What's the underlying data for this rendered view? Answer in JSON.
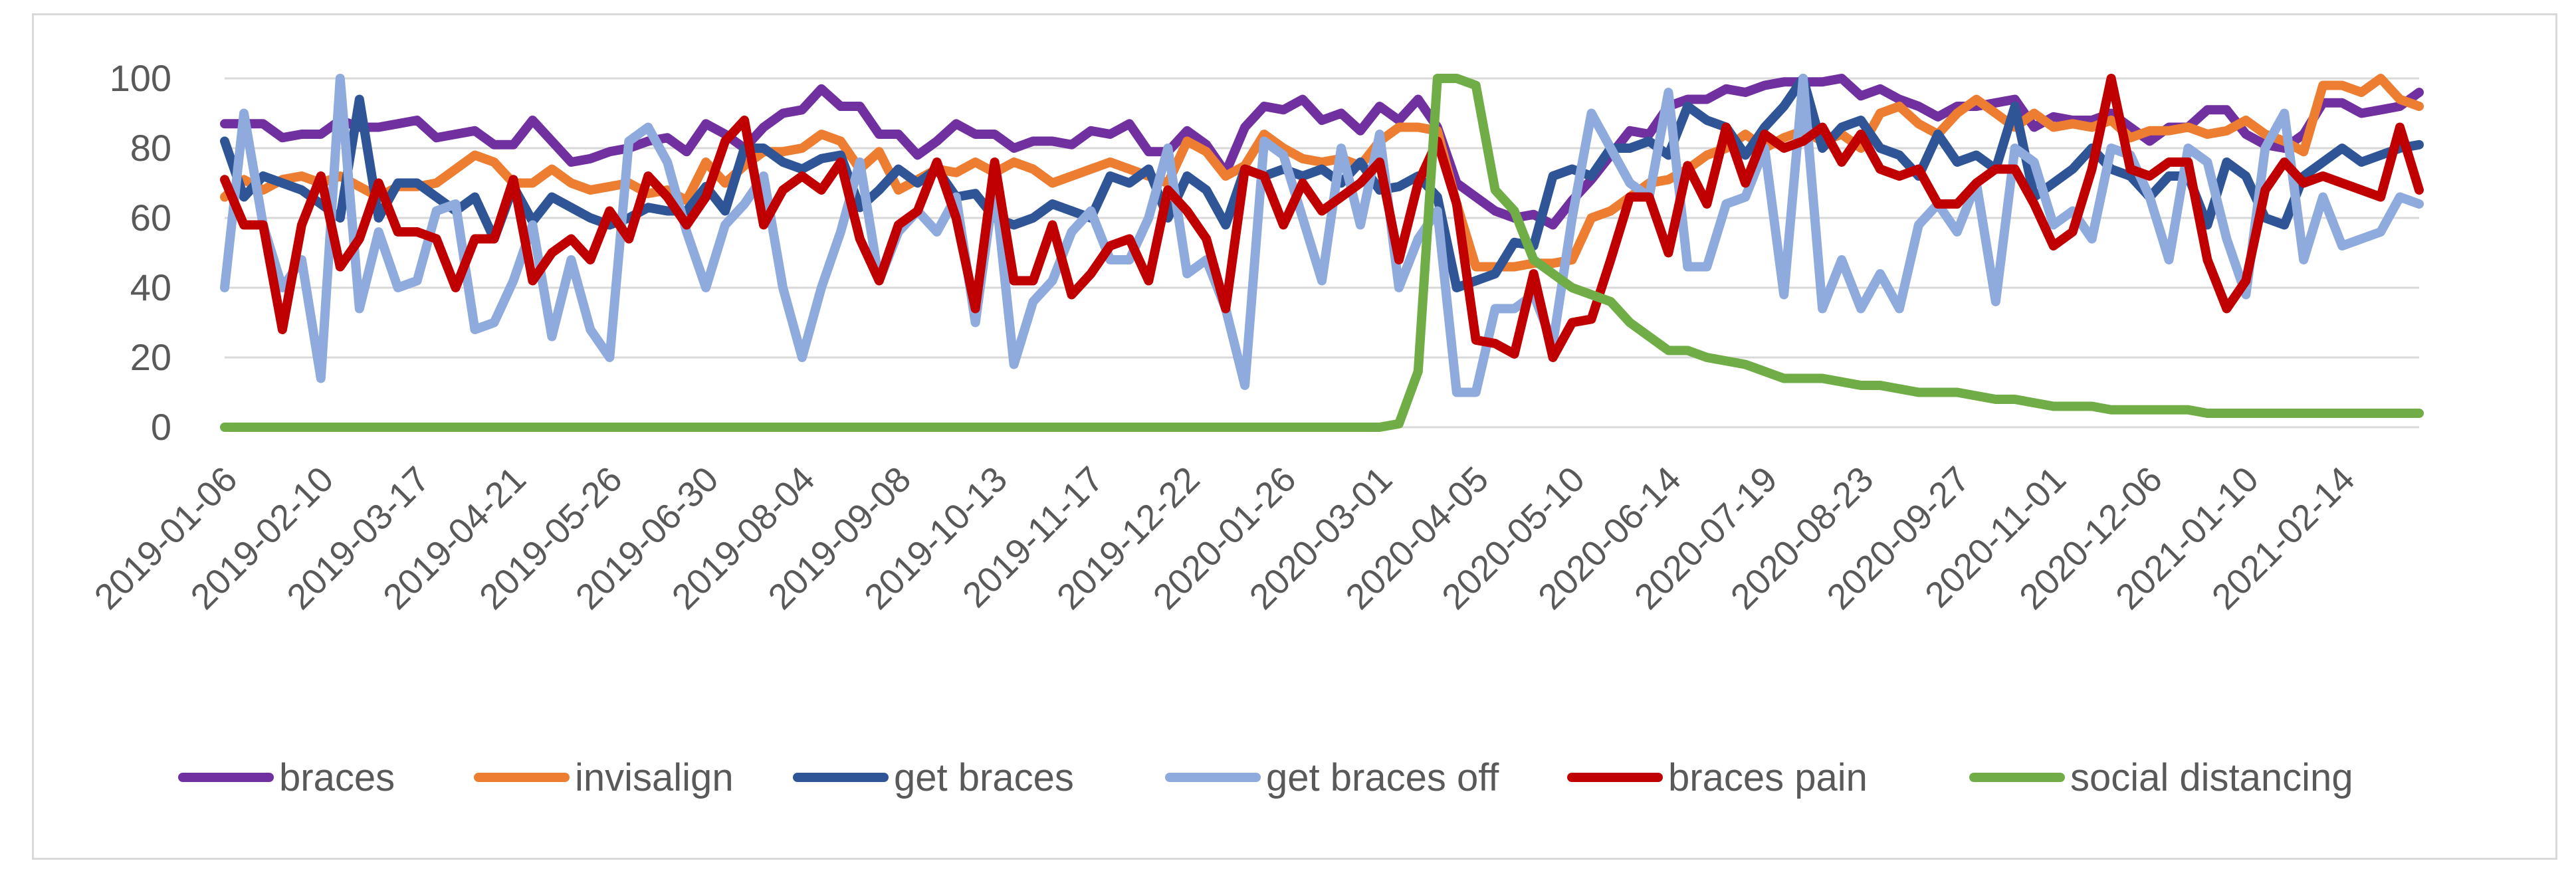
{
  "chart_data": {
    "type": "line",
    "title": "",
    "xlabel": "",
    "ylabel": "",
    "ylim": [
      0,
      100
    ],
    "yticks": [
      0,
      20,
      40,
      60,
      80,
      100
    ],
    "grid": true,
    "legend_position": "bottom",
    "x_tick_labels": [
      "2019-01-06",
      "2019-02-10",
      "2019-03-17",
      "2019-04-21",
      "2019-05-26",
      "2019-06-30",
      "2019-08-04",
      "2019-09-08",
      "2019-10-13",
      "2019-11-17",
      "2019-12-22",
      "2020-01-26",
      "2020-03-01",
      "2020-04-05",
      "2020-05-10",
      "2020-06-14",
      "2020-07-19",
      "2020-08-23",
      "2020-09-27",
      "2020-11-01",
      "2020-12-06",
      "2021-01-10",
      "2021-02-14"
    ],
    "series": [
      {
        "name": "braces",
        "color": "#7030a0",
        "values": [
          87,
          87,
          87,
          83,
          84,
          84,
          88,
          86,
          86,
          87,
          88,
          83,
          84,
          85,
          81,
          81,
          88,
          82,
          76,
          77,
          79,
          80,
          82,
          83,
          79,
          87,
          84,
          80,
          86,
          90,
          91,
          97,
          92,
          92,
          84,
          84,
          78,
          82,
          87,
          84,
          84,
          80,
          82,
          82,
          81,
          85,
          84,
          87,
          79,
          79,
          85,
          81,
          73,
          86,
          92,
          91,
          94,
          88,
          90,
          85,
          92,
          88,
          94,
          86,
          70,
          66,
          62,
          60,
          61,
          58,
          65,
          71,
          78,
          85,
          84,
          92,
          94,
          94,
          97,
          96,
          98,
          99,
          99,
          99,
          100,
          95,
          97,
          94,
          92,
          89,
          92,
          92,
          93,
          94,
          86,
          89,
          88,
          88,
          90,
          86,
          82,
          86,
          86,
          91,
          91,
          84,
          81,
          80,
          84,
          93,
          93,
          90,
          91,
          92,
          96
        ]
      },
      {
        "name": "invisalign",
        "color": "#ed7d31",
        "values": [
          66,
          71,
          68,
          71,
          72,
          70,
          72,
          69,
          66,
          69,
          69,
          70,
          74,
          78,
          76,
          70,
          70,
          74,
          70,
          68,
          69,
          70,
          67,
          68,
          65,
          76,
          70,
          75,
          79,
          79,
          80,
          84,
          82,
          74,
          79,
          68,
          71,
          74,
          73,
          76,
          73,
          76,
          74,
          70,
          72,
          74,
          76,
          74,
          72,
          70,
          82,
          79,
          72,
          75,
          84,
          80,
          77,
          76,
          77,
          75,
          82,
          86,
          86,
          85,
          64,
          46,
          46,
          46,
          47,
          47,
          48,
          60,
          62,
          66,
          70,
          71,
          74,
          78,
          80,
          84,
          80,
          83,
          85,
          82,
          84,
          80,
          90,
          92,
          87,
          84,
          90,
          94,
          90,
          86,
          90,
          86,
          87,
          86,
          88,
          83,
          85,
          85,
          86,
          84,
          85,
          88,
          84,
          82,
          79,
          98,
          98,
          96,
          100,
          94,
          92
        ]
      },
      {
        "name": "get braces",
        "color": "#2f5597",
        "values": [
          82,
          66,
          72,
          70,
          68,
          64,
          60,
          94,
          60,
          70,
          70,
          66,
          62,
          66,
          54,
          69,
          59,
          66,
          63,
          60,
          58,
          60,
          63,
          62,
          62,
          69,
          62,
          80,
          80,
          76,
          74,
          77,
          78,
          63,
          68,
          74,
          70,
          74,
          66,
          67,
          60,
          58,
          60,
          64,
          62,
          60,
          72,
          70,
          74,
          60,
          72,
          68,
          58,
          74,
          72,
          74,
          72,
          74,
          70,
          76,
          68,
          69,
          72,
          66,
          40,
          42,
          44,
          53,
          52,
          72,
          74,
          72,
          80,
          80,
          82,
          78,
          92,
          88,
          86,
          78,
          86,
          92,
          100,
          80,
          86,
          88,
          80,
          78,
          72,
          84,
          76,
          78,
          74,
          92,
          66,
          70,
          74,
          80,
          74,
          72,
          66,
          72,
          72,
          58,
          76,
          72,
          60,
          58,
          72,
          76,
          80,
          76,
          78,
          80,
          81
        ]
      },
      {
        "name": "get braces off",
        "color": "#8faadc",
        "values": [
          40,
          90,
          58,
          40,
          48,
          14,
          100,
          34,
          56,
          40,
          42,
          62,
          64,
          28,
          30,
          42,
          58,
          26,
          48,
          28,
          20,
          82,
          86,
          76,
          56,
          40,
          58,
          64,
          72,
          40,
          20,
          40,
          56,
          76,
          42,
          56,
          62,
          56,
          66,
          30,
          70,
          18,
          36,
          42,
          56,
          62,
          48,
          48,
          60,
          80,
          44,
          48,
          34,
          12,
          82,
          78,
          60,
          42,
          80,
          58,
          84,
          40,
          54,
          62,
          10,
          10,
          34,
          34,
          38,
          24,
          60,
          90,
          80,
          70,
          66,
          96,
          46,
          46,
          64,
          66,
          80,
          38,
          100,
          34,
          48,
          34,
          44,
          34,
          58,
          64,
          56,
          70,
          36,
          80,
          76,
          58,
          62,
          54,
          80,
          78,
          66,
          48,
          80,
          76,
          54,
          38,
          80,
          90,
          48,
          66,
          52,
          54,
          56,
          66,
          64
        ]
      },
      {
        "name": "braces pain",
        "color": "#c00000",
        "values": [
          71,
          58,
          58,
          28,
          58,
          72,
          46,
          54,
          70,
          56,
          56,
          54,
          40,
          54,
          54,
          71,
          42,
          50,
          54,
          48,
          62,
          54,
          72,
          66,
          58,
          66,
          82,
          88,
          58,
          68,
          72,
          68,
          76,
          54,
          42,
          58,
          62,
          76,
          60,
          34,
          76,
          42,
          42,
          58,
          38,
          44,
          52,
          54,
          42,
          68,
          62,
          54,
          34,
          74,
          72,
          58,
          70,
          62,
          66,
          70,
          76,
          48,
          70,
          82,
          64,
          25,
          24,
          21,
          44,
          20,
          30,
          31,
          48,
          66,
          66,
          50,
          75,
          64,
          86,
          70,
          84,
          80,
          82,
          86,
          76,
          84,
          74,
          72,
          74,
          64,
          64,
          70,
          74,
          74,
          64,
          52,
          56,
          74,
          100,
          74,
          72,
          76,
          76,
          48,
          34,
          42,
          68,
          76,
          70,
          72,
          70,
          68,
          66,
          86,
          68
        ]
      },
      {
        "name": "social distancing",
        "color": "#70ad47",
        "values": [
          0,
          0,
          0,
          0,
          0,
          0,
          0,
          0,
          0,
          0,
          0,
          0,
          0,
          0,
          0,
          0,
          0,
          0,
          0,
          0,
          0,
          0,
          0,
          0,
          0,
          0,
          0,
          0,
          0,
          0,
          0,
          0,
          0,
          0,
          0,
          0,
          0,
          0,
          0,
          0,
          0,
          0,
          0,
          0,
          0,
          0,
          0,
          0,
          0,
          0,
          0,
          0,
          0,
          0,
          0,
          0,
          0,
          0,
          0,
          0,
          0,
          1,
          16,
          100,
          100,
          98,
          68,
          62,
          48,
          44,
          40,
          38,
          36,
          30,
          26,
          22,
          22,
          20,
          19,
          18,
          16,
          14,
          14,
          14,
          13,
          12,
          12,
          11,
          10,
          10,
          10,
          9,
          8,
          8,
          7,
          6,
          6,
          6,
          5,
          5,
          5,
          5,
          5,
          4,
          4,
          4,
          4,
          4,
          4,
          4,
          4,
          4,
          4,
          4,
          4
        ]
      }
    ]
  }
}
